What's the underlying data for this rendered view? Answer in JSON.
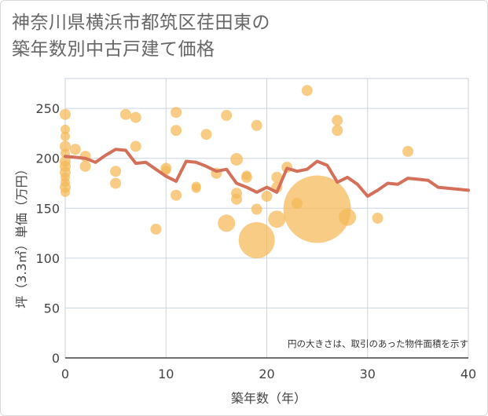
{
  "title_line1": "神奈川県横浜市都筑区荏田東の",
  "title_line2": "築年数別中古戸建て価格",
  "chart_data": {
    "type": "scatter",
    "title": "神奈川県横浜市都筑区荏田東の築年数別中古戸建て価格",
    "xlabel": "築年数（年）",
    "ylabel": "坪（3.3㎡）単価（万円）",
    "note": "円の大きさは、取引のあった物件面積を示す",
    "xlim": [
      0,
      40
    ],
    "ylim": [
      0,
      280
    ],
    "xticks": [
      0,
      10,
      20,
      30,
      40
    ],
    "yticks": [
      0,
      50,
      100,
      150,
      200,
      250
    ],
    "grid": true,
    "colors": {
      "bubble": "#f5b856",
      "line": "#d4705a"
    },
    "bubbles": [
      {
        "x": 0,
        "y": 244,
        "s": 7
      },
      {
        "x": 0,
        "y": 229,
        "s": 6
      },
      {
        "x": 0,
        "y": 222,
        "s": 6
      },
      {
        "x": 0,
        "y": 212,
        "s": 7
      },
      {
        "x": 0,
        "y": 205,
        "s": 6
      },
      {
        "x": 0,
        "y": 197,
        "s": 7
      },
      {
        "x": 0,
        "y": 192,
        "s": 7
      },
      {
        "x": 0,
        "y": 186,
        "s": 7
      },
      {
        "x": 0,
        "y": 181,
        "s": 6
      },
      {
        "x": 0,
        "y": 176,
        "s": 6
      },
      {
        "x": 0,
        "y": 171,
        "s": 7
      },
      {
        "x": 0,
        "y": 166,
        "s": 6
      },
      {
        "x": 1,
        "y": 209,
        "s": 7
      },
      {
        "x": 2,
        "y": 202,
        "s": 7
      },
      {
        "x": 2,
        "y": 192,
        "s": 7
      },
      {
        "x": 5,
        "y": 187,
        "s": 7
      },
      {
        "x": 5,
        "y": 175,
        "s": 7
      },
      {
        "x": 6,
        "y": 244,
        "s": 7
      },
      {
        "x": 7,
        "y": 241,
        "s": 7
      },
      {
        "x": 7,
        "y": 212,
        "s": 7
      },
      {
        "x": 9,
        "y": 129,
        "s": 7
      },
      {
        "x": 10,
        "y": 190,
        "s": 7
      },
      {
        "x": 10,
        "y": 188,
        "s": 6
      },
      {
        "x": 11,
        "y": 246,
        "s": 7
      },
      {
        "x": 11,
        "y": 228,
        "s": 7
      },
      {
        "x": 11,
        "y": 163,
        "s": 7
      },
      {
        "x": 13,
        "y": 172,
        "s": 6
      },
      {
        "x": 13,
        "y": 170,
        "s": 6
      },
      {
        "x": 14,
        "y": 224,
        "s": 7
      },
      {
        "x": 15,
        "y": 185,
        "s": 7
      },
      {
        "x": 16,
        "y": 243,
        "s": 7
      },
      {
        "x": 16,
        "y": 135,
        "s": 11
      },
      {
        "x": 17,
        "y": 199,
        "s": 8
      },
      {
        "x": 17,
        "y": 165,
        "s": 7
      },
      {
        "x": 17,
        "y": 159,
        "s": 7
      },
      {
        "x": 18,
        "y": 183,
        "s": 6
      },
      {
        "x": 18,
        "y": 181,
        "s": 7
      },
      {
        "x": 19,
        "y": 233,
        "s": 7
      },
      {
        "x": 19,
        "y": 149,
        "s": 7
      },
      {
        "x": 19,
        "y": 118,
        "s": 23
      },
      {
        "x": 20,
        "y": 162,
        "s": 7
      },
      {
        "x": 21,
        "y": 181,
        "s": 7
      },
      {
        "x": 21,
        "y": 171,
        "s": 7
      },
      {
        "x": 21,
        "y": 139,
        "s": 11
      },
      {
        "x": 22,
        "y": 191,
        "s": 7
      },
      {
        "x": 23,
        "y": 155,
        "s": 7
      },
      {
        "x": 24,
        "y": 268,
        "s": 7
      },
      {
        "x": 25,
        "y": 149,
        "s": 43
      },
      {
        "x": 27,
        "y": 238,
        "s": 7
      },
      {
        "x": 27,
        "y": 228,
        "s": 7
      },
      {
        "x": 28,
        "y": 141,
        "s": 11
      },
      {
        "x": 31,
        "y": 140,
        "s": 7
      },
      {
        "x": 34,
        "y": 207,
        "s": 7
      }
    ],
    "line": [
      {
        "x": 0,
        "y": 202
      },
      {
        "x": 1,
        "y": 201
      },
      {
        "x": 2,
        "y": 200
      },
      {
        "x": 3,
        "y": 196
      },
      {
        "x": 4,
        "y": 203
      },
      {
        "x": 5,
        "y": 209
      },
      {
        "x": 6,
        "y": 208
      },
      {
        "x": 7,
        "y": 195
      },
      {
        "x": 8,
        "y": 196
      },
      {
        "x": 9,
        "y": 189
      },
      {
        "x": 10,
        "y": 182
      },
      {
        "x": 11,
        "y": 177
      },
      {
        "x": 12,
        "y": 197
      },
      {
        "x": 13,
        "y": 196
      },
      {
        "x": 14,
        "y": 192
      },
      {
        "x": 15,
        "y": 187
      },
      {
        "x": 16,
        "y": 189
      },
      {
        "x": 17,
        "y": 175
      },
      {
        "x": 18,
        "y": 171
      },
      {
        "x": 19,
        "y": 166
      },
      {
        "x": 20,
        "y": 171
      },
      {
        "x": 21,
        "y": 166
      },
      {
        "x": 22,
        "y": 190
      },
      {
        "x": 23,
        "y": 187
      },
      {
        "x": 24,
        "y": 189
      },
      {
        "x": 25,
        "y": 197
      },
      {
        "x": 26,
        "y": 193
      },
      {
        "x": 27,
        "y": 176
      },
      {
        "x": 28,
        "y": 181
      },
      {
        "x": 29,
        "y": 174
      },
      {
        "x": 30,
        "y": 162
      },
      {
        "x": 31,
        "y": 168
      },
      {
        "x": 32,
        "y": 175
      },
      {
        "x": 33,
        "y": 174
      },
      {
        "x": 34,
        "y": 180
      },
      {
        "x": 35,
        "y": 179
      },
      {
        "x": 36,
        "y": 178
      },
      {
        "x": 37,
        "y": 171
      },
      {
        "x": 38,
        "y": 170
      },
      {
        "x": 39,
        "y": 169
      },
      {
        "x": 40,
        "y": 168
      }
    ]
  }
}
